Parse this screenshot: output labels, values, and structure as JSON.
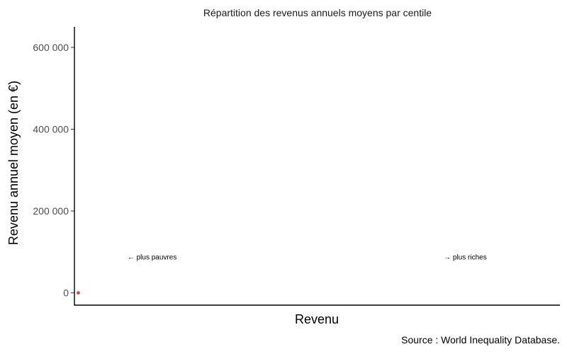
{
  "chart_data": {
    "type": "scatter",
    "title": "Répartition des revenus annuels moyens par centile",
    "xlabel": "Revenu",
    "ylabel": "Revenu annuel moyen (en €)",
    "ylim": [
      -30000,
      650000
    ],
    "xlim": [
      0,
      100
    ],
    "yticks": [
      {
        "value": 0,
        "label": "0"
      },
      {
        "value": 200000,
        "label": "200 000"
      },
      {
        "value": 400000,
        "label": "400 000"
      },
      {
        "value": 600000,
        "label": "600 000"
      }
    ],
    "points": [
      {
        "x": 0.8,
        "y": 0
      }
    ],
    "point_color": "#e8463a",
    "grid": false,
    "annotations": [
      {
        "text": "← plus pauvres",
        "x": 16,
        "y": 82000
      },
      {
        "text": "→ plus riches",
        "x": 80.5,
        "y": 82000
      }
    ],
    "caption": "Source : World Inequality Database."
  }
}
